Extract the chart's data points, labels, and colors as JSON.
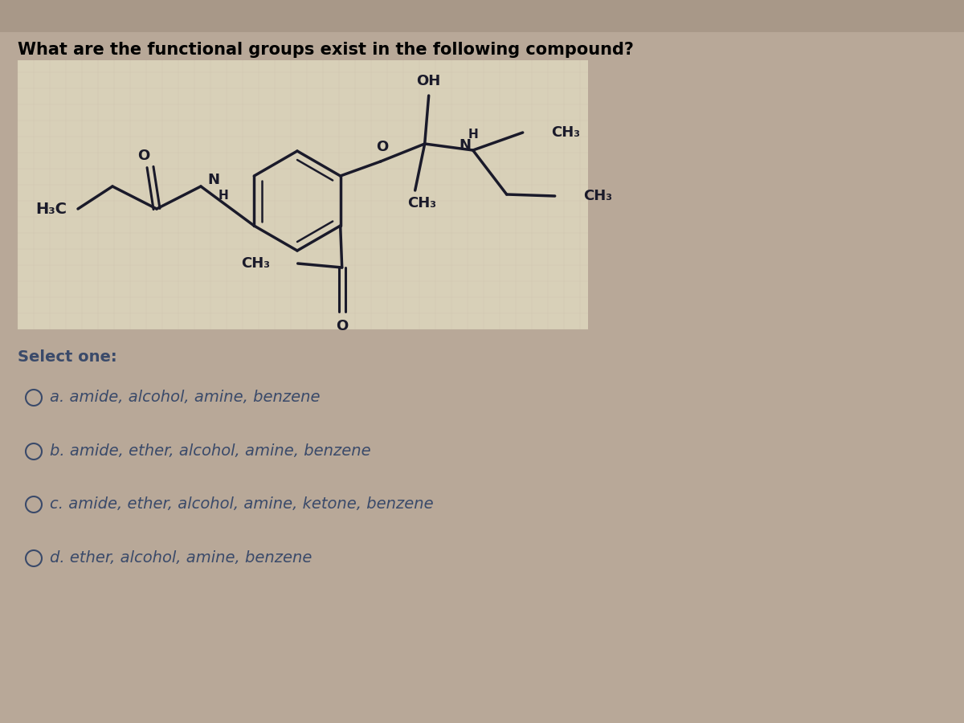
{
  "title": "What are the functional groups exist in the following compound?",
  "title_fontsize": 15,
  "outer_bg": "#b8a898",
  "box_bg": "#d8d0b8",
  "text_color": "#3a4a6a",
  "chem_color": "#1a1a2a",
  "select_label": "Select one:",
  "options": [
    "a. amide, alcohol, amine, benzene",
    "b. amide, ether, alcohol, amine, benzene",
    "c. amide, ether, alcohol, amine, ketone, benzene",
    "d. ether, alcohol, amine, benzene"
  ],
  "option_fontsize": 14,
  "select_fontsize": 14,
  "chem_fontsize": 13
}
